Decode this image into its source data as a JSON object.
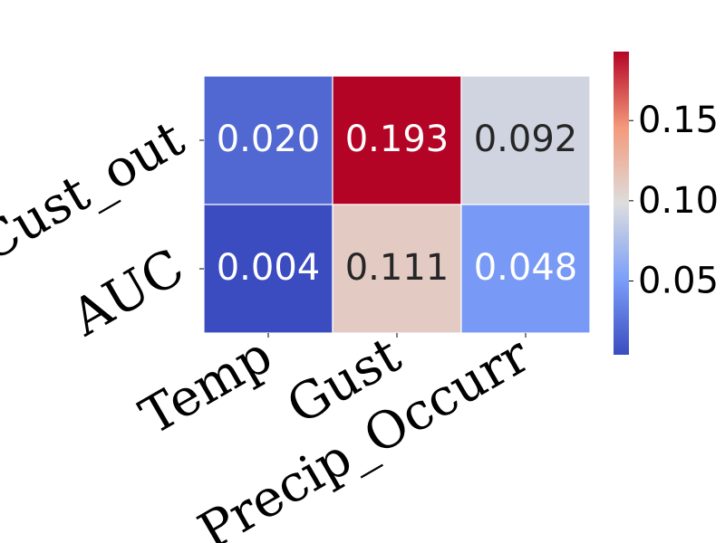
{
  "chart_data": {
    "type": "heatmap",
    "rows": [
      "Cust_out",
      "AUC"
    ],
    "columns": [
      "Temp",
      "Gust",
      "Precip_Occurr"
    ],
    "values": [
      [
        0.02,
        0.193,
        0.092
      ],
      [
        0.004,
        0.111,
        0.048
      ]
    ],
    "cell_labels": [
      [
        "0.020",
        "0.193",
        "0.092"
      ],
      [
        "0.004",
        "0.111",
        "0.048"
      ]
    ],
    "colormap": "coolwarm",
    "vmin": 0.004,
    "vmax": 0.193,
    "colorbar": {
      "ticks": [
        0.05,
        0.1,
        0.15
      ],
      "tick_labels": [
        "0.05",
        "0.10",
        "0.15"
      ]
    },
    "grid": false
  }
}
